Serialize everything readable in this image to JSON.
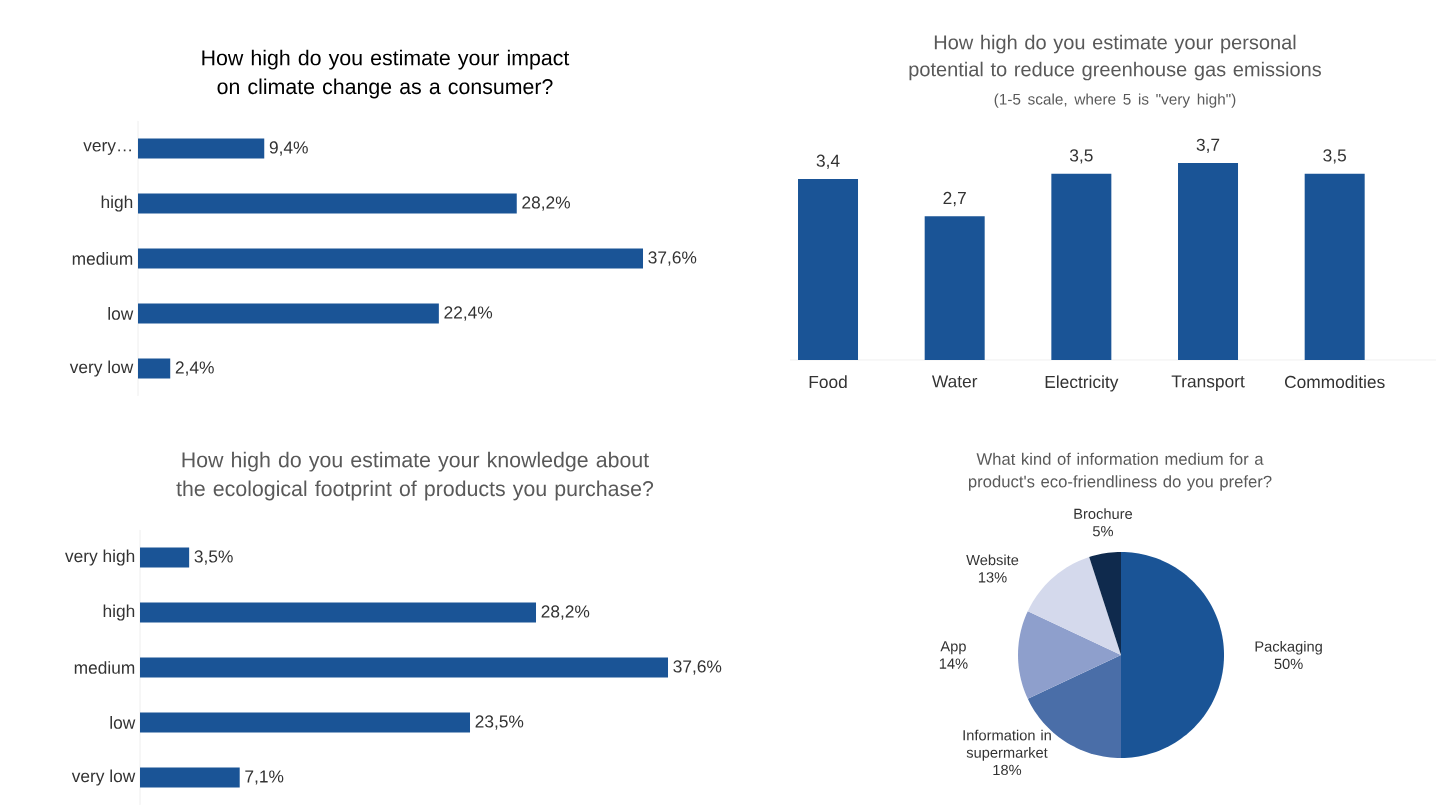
{
  "chart_data": [
    {
      "type": "bar",
      "orientation": "horizontal",
      "title": "How high do you estimate your impact on climate change as a consumer?",
      "categories": [
        "very…",
        "high",
        "medium",
        "low",
        "very low"
      ],
      "values": [
        9.4,
        28.2,
        37.6,
        22.4,
        2.4
      ],
      "value_labels": [
        "9,4%",
        "28,2%",
        "37,6%",
        "22,4%",
        "2,4%"
      ],
      "color": "#1a5496"
    },
    {
      "type": "bar",
      "title": "How high do you estimate your personal potential to reduce greenhouse gas emissions",
      "subtitle": "(1-5 scale, where 5 is \"very high\")",
      "categories": [
        "Food",
        "Water",
        "Electricity",
        "Transport",
        "Commodities"
      ],
      "values": [
        3.4,
        2.7,
        3.5,
        3.7,
        3.5
      ],
      "value_labels": [
        "3,4",
        "2,7",
        "3,5",
        "3,7",
        "3,5"
      ],
      "color": "#1a5496"
    },
    {
      "type": "bar",
      "orientation": "horizontal",
      "title": "How high do you estimate your knowledge about the ecological footprint of products you purchase?",
      "categories": [
        "very high",
        "high",
        "medium",
        "low",
        "very low"
      ],
      "values": [
        3.5,
        28.2,
        37.6,
        23.5,
        7.1
      ],
      "value_labels": [
        "3,5%",
        "28,2%",
        "37,6%",
        "23,5%",
        "7,1%"
      ],
      "color": "#1a5496"
    },
    {
      "type": "pie",
      "title": "What kind of information medium for a product's eco-friendliness do you prefer?",
      "categories": [
        "Packaging",
        "Information in supermarket",
        "App",
        "Website",
        "Brochure"
      ],
      "values": [
        50,
        18,
        14,
        13,
        5
      ],
      "value_labels": [
        "50%",
        "18%",
        "14%",
        "13%",
        "5%"
      ],
      "colors": [
        "#1a5496",
        "#4a6ea8",
        "#8e9fcc",
        "#d4d9ec",
        "#0f2a4d"
      ]
    }
  ]
}
